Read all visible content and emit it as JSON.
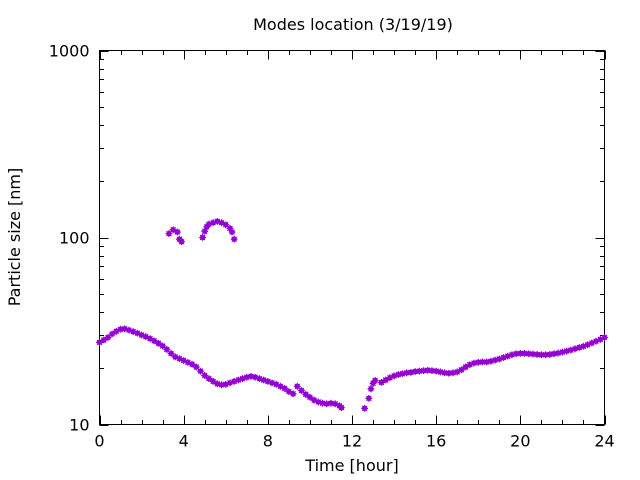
{
  "chart_data": {
    "type": "scatter",
    "title": "Modes location (3/19/19)",
    "xlabel": "Time [hour]",
    "ylabel": "Particle size [nm]",
    "xlim": [
      0,
      24
    ],
    "ylim": [
      10,
      1000
    ],
    "yscale": "log",
    "grid": false,
    "legend": "none",
    "marker_color": "#9400d3",
    "xticks": [
      0,
      4,
      8,
      12,
      16,
      20,
      24
    ],
    "xtick_labels": [
      "0",
      "4",
      "8",
      "12",
      "16",
      "20",
      "24"
    ],
    "yticks": [
      10,
      100,
      1000
    ],
    "ytick_labels": [
      "10",
      "100",
      "1000"
    ],
    "series": [
      {
        "points": [
          [
            0.0,
            27.5
          ],
          [
            0.2,
            28.3
          ],
          [
            0.4,
            29.2
          ],
          [
            0.6,
            30.5
          ],
          [
            0.8,
            31.5
          ],
          [
            1.0,
            32.3
          ],
          [
            1.2,
            32.5
          ],
          [
            1.4,
            32.0
          ],
          [
            1.6,
            31.4
          ],
          [
            1.8,
            30.8
          ],
          [
            2.0,
            30.1
          ],
          [
            2.2,
            29.5
          ],
          [
            2.4,
            28.8
          ],
          [
            2.6,
            28.0
          ],
          [
            2.8,
            27.2
          ],
          [
            3.0,
            26.3
          ],
          [
            3.2,
            25.2
          ],
          [
            3.4,
            24.0
          ],
          [
            3.6,
            23.0
          ],
          [
            3.8,
            22.5
          ],
          [
            4.0,
            22.0
          ],
          [
            4.2,
            21.5
          ],
          [
            4.4,
            21.0
          ],
          [
            4.6,
            20.3
          ],
          [
            4.8,
            19.3
          ],
          [
            5.0,
            18.3
          ],
          [
            5.2,
            17.6
          ],
          [
            5.4,
            17.0
          ],
          [
            5.6,
            16.5
          ],
          [
            5.8,
            16.3
          ],
          [
            6.0,
            16.4
          ],
          [
            6.2,
            16.7
          ],
          [
            6.4,
            17.0
          ],
          [
            6.6,
            17.3
          ],
          [
            6.8,
            17.6
          ],
          [
            7.0,
            17.9
          ],
          [
            7.2,
            18.1
          ],
          [
            7.4,
            17.9
          ],
          [
            7.6,
            17.6
          ],
          [
            7.8,
            17.3
          ],
          [
            8.0,
            17.0
          ],
          [
            8.2,
            16.7
          ],
          [
            8.4,
            16.4
          ],
          [
            8.6,
            16.0
          ],
          [
            8.8,
            15.6
          ],
          [
            9.0,
            15.0
          ],
          [
            9.2,
            14.6
          ],
          [
            9.4,
            16.0
          ],
          [
            9.6,
            15.2
          ],
          [
            9.8,
            14.5
          ],
          [
            10.0,
            14.0
          ],
          [
            10.2,
            13.5
          ],
          [
            10.4,
            13.2
          ],
          [
            10.6,
            13.0
          ],
          [
            10.8,
            12.9
          ],
          [
            11.0,
            13.0
          ],
          [
            11.2,
            12.9
          ],
          [
            11.4,
            12.6
          ],
          [
            11.5,
            12.3
          ],
          [
            12.6,
            12.2
          ],
          [
            12.8,
            13.8
          ],
          [
            12.9,
            15.5
          ],
          [
            13.0,
            16.6
          ],
          [
            13.1,
            17.2
          ],
          [
            13.4,
            16.8
          ],
          [
            13.6,
            17.3
          ],
          [
            13.8,
            17.8
          ],
          [
            14.0,
            18.2
          ],
          [
            14.2,
            18.5
          ],
          [
            14.4,
            18.7
          ],
          [
            14.6,
            18.9
          ],
          [
            14.8,
            19.0
          ],
          [
            15.0,
            19.2
          ],
          [
            15.2,
            19.3
          ],
          [
            15.4,
            19.4
          ],
          [
            15.6,
            19.5
          ],
          [
            15.8,
            19.4
          ],
          [
            16.0,
            19.3
          ],
          [
            16.2,
            19.1
          ],
          [
            16.4,
            18.9
          ],
          [
            16.6,
            18.8
          ],
          [
            16.8,
            18.9
          ],
          [
            17.0,
            19.1
          ],
          [
            17.2,
            19.6
          ],
          [
            17.4,
            20.3
          ],
          [
            17.6,
            20.9
          ],
          [
            17.8,
            21.3
          ],
          [
            18.0,
            21.5
          ],
          [
            18.2,
            21.6
          ],
          [
            18.4,
            21.6
          ],
          [
            18.6,
            21.8
          ],
          [
            18.8,
            22.1
          ],
          [
            19.0,
            22.4
          ],
          [
            19.2,
            22.8
          ],
          [
            19.4,
            23.2
          ],
          [
            19.6,
            23.6
          ],
          [
            19.8,
            23.9
          ],
          [
            20.0,
            24.0
          ],
          [
            20.2,
            24.0
          ],
          [
            20.4,
            23.9
          ],
          [
            20.6,
            23.8
          ],
          [
            20.8,
            23.7
          ],
          [
            21.0,
            23.6
          ],
          [
            21.2,
            23.6
          ],
          [
            21.4,
            23.7
          ],
          [
            21.6,
            23.9
          ],
          [
            21.8,
            24.1
          ],
          [
            22.0,
            24.4
          ],
          [
            22.2,
            24.7
          ],
          [
            22.4,
            25.0
          ],
          [
            22.6,
            25.4
          ],
          [
            22.8,
            25.8
          ],
          [
            23.0,
            26.2
          ],
          [
            23.2,
            26.7
          ],
          [
            23.4,
            27.3
          ],
          [
            23.6,
            27.9
          ],
          [
            23.8,
            28.5
          ],
          [
            24.0,
            29.2
          ],
          [
            3.3,
            105
          ],
          [
            3.5,
            110
          ],
          [
            3.7,
            107
          ],
          [
            3.8,
            98
          ],
          [
            3.9,
            95
          ],
          [
            4.9,
            100
          ],
          [
            5.0,
            108
          ],
          [
            5.1,
            114
          ],
          [
            5.2,
            118
          ],
          [
            5.4,
            120
          ],
          [
            5.6,
            122
          ],
          [
            5.8,
            120
          ],
          [
            6.0,
            117
          ],
          [
            6.2,
            112
          ],
          [
            6.3,
            107
          ],
          [
            6.4,
            98
          ]
        ]
      }
    ]
  }
}
